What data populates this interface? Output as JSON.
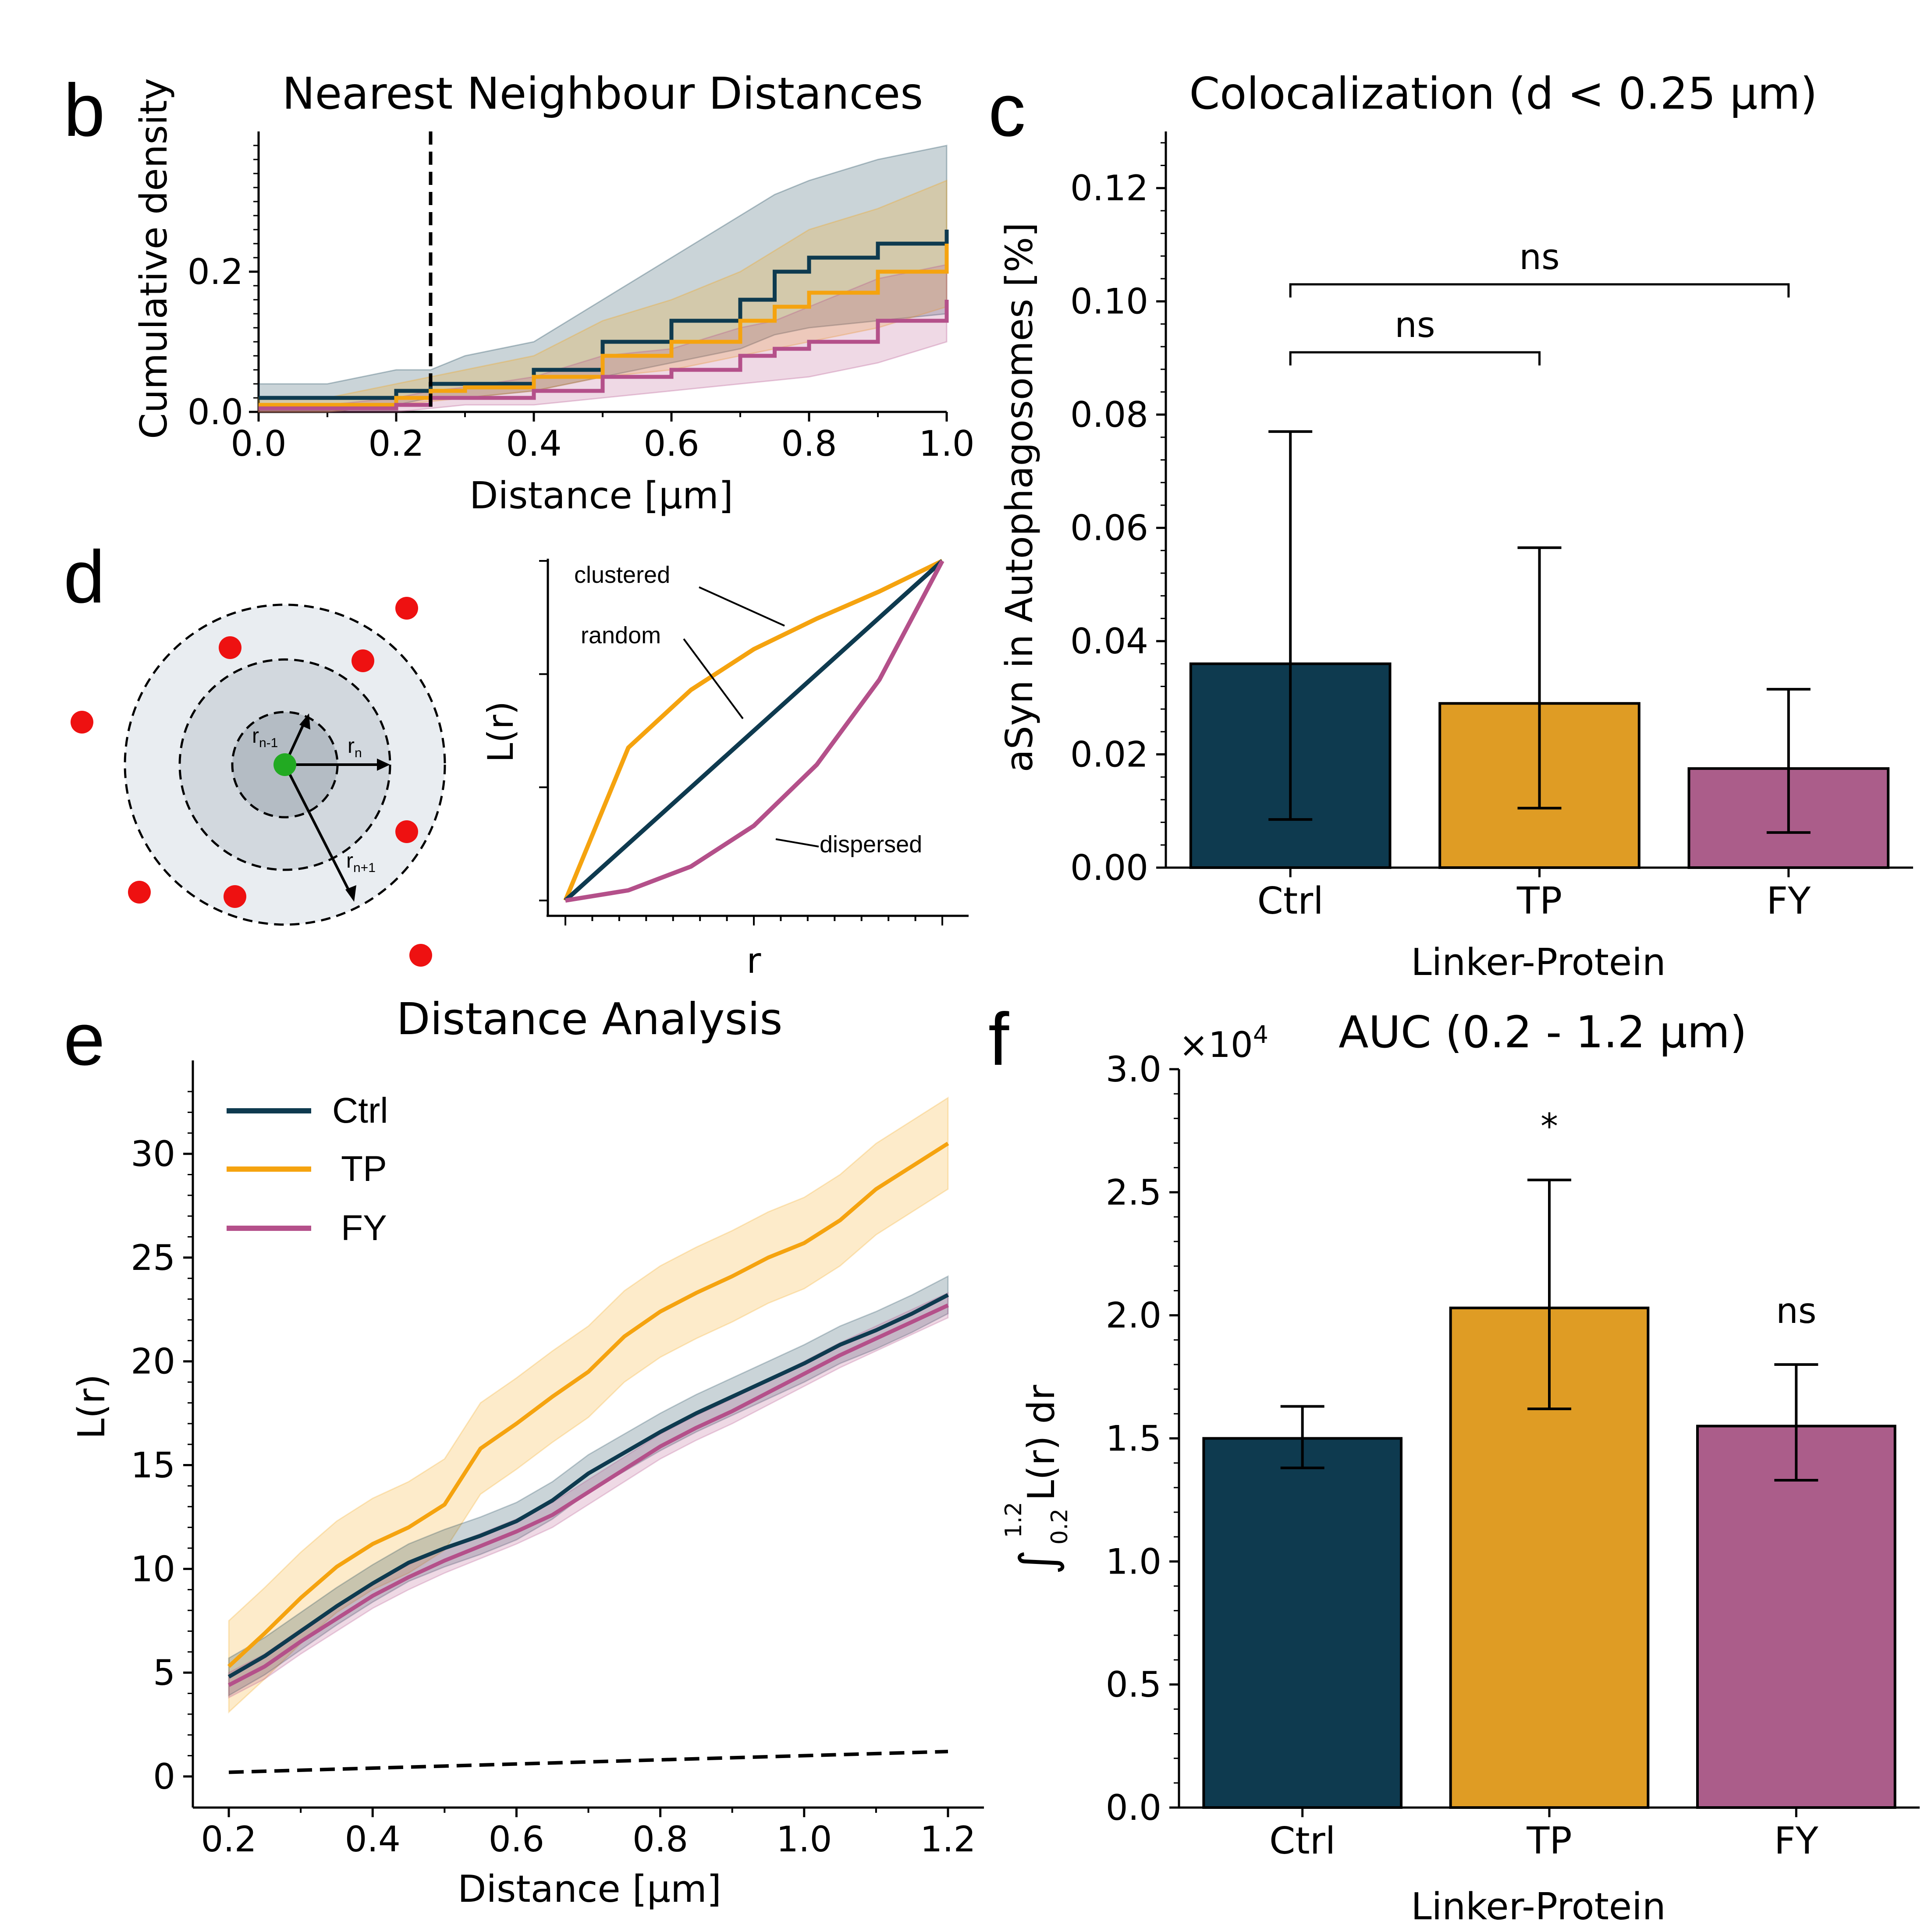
{
  "colors": {
    "ctrl": "#0e3a4f",
    "tp": "#f5a30f",
    "fy": "#b4508a",
    "tp_bar": "#df9c24",
    "fy_bar": "#ab5d8a",
    "spot": "#ee1111",
    "center": "#22aa22"
  },
  "panels": {
    "b": {
      "letter": "b",
      "title": "Nearest Neighbour Distances",
      "xlabel": "Distance [µm]",
      "ylabel": "Cumulative density"
    },
    "c": {
      "letter": "c",
      "title": "Colocalization (d < 0.25 µm)",
      "xlabel": "Linker-Protein",
      "ylabel": "aSyn in Autophagosomes [%]",
      "sig": [
        "ns",
        "ns"
      ]
    },
    "d": {
      "letter": "d",
      "ylabel": "L(r)",
      "xlabel": "r",
      "labels": {
        "clustered": "clustered",
        "random": "random",
        "dispersed": "dispersed"
      },
      "radii": {
        "r_prev": "r",
        "r_prev_sub": "n-1",
        "r_n": "r",
        "r_n_sub": "n",
        "r_next": "r",
        "r_next_sub": "n+1"
      }
    },
    "e": {
      "letter": "e",
      "title": "Distance Analysis",
      "xlabel": "Distance [µm]",
      "ylabel": "L(r)",
      "legend": [
        "Ctrl",
        "TP",
        "FY"
      ]
    },
    "f": {
      "letter": "f",
      "title": "AUC (0.2 - 1.2 µm)",
      "xlabel": "Linker-Protein",
      "ylabel": "L(r) dr",
      "ylabel_int_lower": "0.2",
      "ylabel_int_upper": "1.2",
      "multiplier": "×10",
      "multiplier_exp": "4",
      "sig": [
        "*",
        "ns"
      ]
    }
  },
  "chart_data": [
    {
      "panel": "b",
      "type": "line",
      "title": "Nearest Neighbour Distances",
      "xlabel": "Distance [µm]",
      "ylabel": "Cumulative density",
      "xlim": [
        0.0,
        1.0
      ],
      "ylim": [
        0.0,
        0.4
      ],
      "xticks": [
        "0.0",
        "0.2",
        "0.4",
        "0.6",
        "0.8",
        "1.0"
      ],
      "yticks": [
        "0.0",
        "0.2"
      ],
      "vline": 0.25,
      "x": [
        0.0,
        0.1,
        0.2,
        0.25,
        0.3,
        0.4,
        0.5,
        0.6,
        0.7,
        0.75,
        0.8,
        0.9,
        1.0
      ],
      "series": [
        {
          "name": "Ctrl",
          "values": [
            0.02,
            0.02,
            0.03,
            0.04,
            0.04,
            0.06,
            0.1,
            0.13,
            0.16,
            0.2,
            0.22,
            0.24,
            0.26
          ],
          "lower": [
            0.0,
            0.0,
            0.01,
            0.02,
            0.02,
            0.03,
            0.05,
            0.07,
            0.09,
            0.11,
            0.12,
            0.13,
            0.14
          ],
          "upper": [
            0.04,
            0.04,
            0.06,
            0.06,
            0.08,
            0.1,
            0.16,
            0.22,
            0.28,
            0.31,
            0.33,
            0.36,
            0.38
          ]
        },
        {
          "name": "TP",
          "values": [
            0.01,
            0.01,
            0.02,
            0.03,
            0.035,
            0.05,
            0.08,
            0.1,
            0.13,
            0.15,
            0.17,
            0.2,
            0.24
          ],
          "lower": [
            0.0,
            0.0,
            0.01,
            0.015,
            0.02,
            0.03,
            0.05,
            0.06,
            0.08,
            0.09,
            0.1,
            0.12,
            0.15
          ],
          "upper": [
            0.02,
            0.02,
            0.04,
            0.05,
            0.06,
            0.08,
            0.13,
            0.16,
            0.2,
            0.23,
            0.26,
            0.29,
            0.33
          ]
        },
        {
          "name": "FY",
          "values": [
            0.005,
            0.005,
            0.01,
            0.02,
            0.02,
            0.03,
            0.05,
            0.06,
            0.08,
            0.09,
            0.1,
            0.13,
            0.16
          ],
          "lower": [
            0.0,
            0.0,
            0.0,
            0.005,
            0.01,
            0.01,
            0.02,
            0.03,
            0.04,
            0.045,
            0.05,
            0.07,
            0.1
          ],
          "upper": [
            0.01,
            0.01,
            0.02,
            0.03,
            0.035,
            0.05,
            0.08,
            0.09,
            0.12,
            0.13,
            0.15,
            0.19,
            0.21
          ]
        }
      ]
    },
    {
      "panel": "c",
      "type": "bar",
      "title": "Colocalization (d < 0.25 µm)",
      "xlabel": "Linker-Protein",
      "ylabel": "aSyn in Autophagosomes [%]",
      "ylim": [
        0.0,
        0.13
      ],
      "yticks": [
        "0.00",
        "0.02",
        "0.04",
        "0.06",
        "0.08",
        "0.10",
        "0.12"
      ],
      "categories": [
        "Ctrl",
        "TP",
        "FY"
      ],
      "values": [
        0.036,
        0.029,
        0.0175
      ],
      "err_low": [
        0.0085,
        0.0105,
        0.0062
      ],
      "err_high": [
        0.077,
        0.0565,
        0.0315
      ],
      "brackets": [
        {
          "from": "Ctrl",
          "to": "TP",
          "y": 0.091,
          "label": "ns"
        },
        {
          "from": "Ctrl",
          "to": "FY",
          "y": 0.103,
          "label": "ns"
        }
      ]
    },
    {
      "panel": "d",
      "type": "line",
      "xlabel": "r",
      "ylabel": "L(r)",
      "series": [
        {
          "name": "clustered",
          "values": [
            0.0,
            0.45,
            0.62,
            0.74,
            0.83,
            0.91,
            1.0
          ]
        },
        {
          "name": "random",
          "values": [
            0.0,
            0.167,
            0.333,
            0.5,
            0.667,
            0.833,
            1.0
          ]
        },
        {
          "name": "dispersed",
          "values": [
            0.0,
            0.03,
            0.1,
            0.22,
            0.4,
            0.65,
            1.0
          ]
        }
      ],
      "x": [
        0.0,
        0.167,
        0.333,
        0.5,
        0.667,
        0.833,
        1.0
      ]
    },
    {
      "panel": "e",
      "type": "line",
      "title": "Distance Analysis",
      "xlabel": "Distance [µm]",
      "ylabel": "L(r)",
      "xlim": [
        0.15,
        1.25
      ],
      "ylim": [
        -1.5,
        34.5
      ],
      "xticks": [
        "0.2",
        "0.4",
        "0.6",
        "0.8",
        "1.0",
        "1.2"
      ],
      "yticks": [
        "0",
        "5",
        "10",
        "15",
        "20",
        "25",
        "30"
      ],
      "x": [
        0.2,
        0.25,
        0.3,
        0.35,
        0.4,
        0.45,
        0.5,
        0.55,
        0.6,
        0.65,
        0.7,
        0.75,
        0.8,
        0.85,
        0.9,
        0.95,
        1.0,
        1.05,
        1.1,
        1.15,
        1.2
      ],
      "reference": {
        "x": [
          0.2,
          1.2
        ],
        "values": [
          0.2,
          1.2
        ]
      },
      "series": [
        {
          "name": "Ctrl",
          "band": 0.9,
          "values": [
            4.8,
            5.8,
            7.0,
            8.2,
            9.3,
            10.3,
            11.0,
            11.6,
            12.3,
            13.3,
            14.6,
            15.6,
            16.6,
            17.5,
            18.3,
            19.1,
            19.9,
            20.8,
            21.5,
            22.3,
            23.2
          ]
        },
        {
          "name": "TP",
          "band": 2.2,
          "values": [
            5.3,
            6.9,
            8.6,
            10.1,
            11.2,
            12.0,
            13.1,
            15.8,
            17.0,
            18.3,
            19.5,
            21.2,
            22.4,
            23.3,
            24.1,
            25.0,
            25.7,
            26.8,
            28.3,
            29.4,
            30.5
          ]
        },
        {
          "name": "FY",
          "band": 0.6,
          "values": [
            4.4,
            5.3,
            6.5,
            7.6,
            8.7,
            9.6,
            10.4,
            11.1,
            11.8,
            12.6,
            13.7,
            14.8,
            15.9,
            16.8,
            17.6,
            18.5,
            19.4,
            20.3,
            21.1,
            21.9,
            22.7
          ]
        }
      ]
    },
    {
      "panel": "f",
      "type": "bar",
      "title": "AUC (0.2 - 1.2 µm)",
      "xlabel": "Linker-Protein",
      "ylim": [
        0.0,
        3.0
      ],
      "yticks": [
        "0.0",
        "0.5",
        "1.0",
        "1.5",
        "2.0",
        "2.5",
        "3.0"
      ],
      "categories": [
        "Ctrl",
        "TP",
        "FY"
      ],
      "values": [
        1.5,
        2.03,
        1.55
      ],
      "err_low": [
        1.38,
        1.62,
        1.33
      ],
      "err_high": [
        1.63,
        2.55,
        1.8
      ],
      "annotations": [
        "",
        "*",
        "ns"
      ]
    }
  ]
}
